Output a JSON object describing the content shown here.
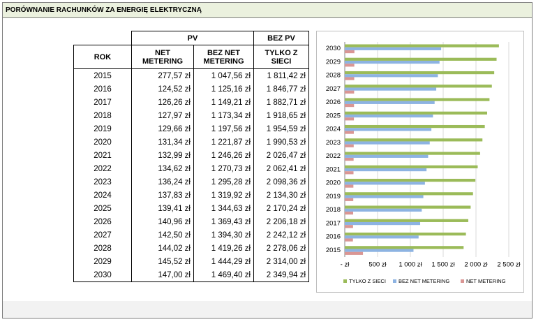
{
  "header": {
    "title": "PORÓWNANIE RACHUNKÓW ZA ENERGIĘ ELEKTRYCZNĄ"
  },
  "table": {
    "group_headers": [
      "PV",
      "BEZ PV"
    ],
    "columns": [
      "ROK",
      "NET METERING",
      "BEZ NET METERING",
      "TYLKO Z SIECI"
    ],
    "rows": [
      [
        "2015",
        "277,57 zł",
        "1 047,56 zł",
        "1 811,42 zł"
      ],
      [
        "2016",
        "124,52 zł",
        "1 125,16 zł",
        "1 846,77 zł"
      ],
      [
        "2017",
        "126,26 zł",
        "1 149,21 zł",
        "1 882,71 zł"
      ],
      [
        "2018",
        "127,97 zł",
        "1 173,34 zł",
        "1 918,65 zł"
      ],
      [
        "2019",
        "129,66 zł",
        "1 197,56 zł",
        "1 954,59 zł"
      ],
      [
        "2020",
        "131,34 zł",
        "1 221,87 zł",
        "1 990,53 zł"
      ],
      [
        "2021",
        "132,99 zł",
        "1 246,26 zł",
        "2 026,47 zł"
      ],
      [
        "2022",
        "134,62 zł",
        "1 270,73 zł",
        "2 062,41 zł"
      ],
      [
        "2023",
        "136,24 zł",
        "1 295,28 zł",
        "2 098,36 zł"
      ],
      [
        "2024",
        "137,83 zł",
        "1 319,92 zł",
        "2 134,30 zł"
      ],
      [
        "2025",
        "139,41 zł",
        "1 344,63 zł",
        "2 170,24 zł"
      ],
      [
        "2026",
        "140,96 zł",
        "1 369,43 zł",
        "2 206,18 zł"
      ],
      [
        "2027",
        "142,50 zł",
        "1 394,30 zł",
        "2 242,12 zł"
      ],
      [
        "2028",
        "144,02 zł",
        "1 419,26 zł",
        "2 278,06 zł"
      ],
      [
        "2029",
        "145,52 zł",
        "1 444,29 zł",
        "2 314,00 zł"
      ],
      [
        "2030",
        "147,00 zł",
        "1 469,40 zł",
        "2 349,94 zł"
      ]
    ]
  },
  "chart_data": {
    "type": "bar",
    "orientation": "horizontal",
    "categories": [
      "2015",
      "2016",
      "2017",
      "2018",
      "2019",
      "2020",
      "2021",
      "2022",
      "2023",
      "2024",
      "2025",
      "2026",
      "2027",
      "2028",
      "2029",
      "2030"
    ],
    "series": [
      {
        "name": "TYLKO Z SIECI",
        "color": "#9bbb59",
        "values": [
          1811.42,
          1846.77,
          1882.71,
          1918.65,
          1954.59,
          1990.53,
          2026.47,
          2062.41,
          2098.36,
          2134.3,
          2170.24,
          2206.18,
          2242.12,
          2278.06,
          2314.0,
          2349.94
        ]
      },
      {
        "name": "BEZ NET METERING",
        "color": "#8db3e2",
        "values": [
          1047.56,
          1125.16,
          1149.21,
          1173.34,
          1197.56,
          1221.87,
          1246.26,
          1270.73,
          1295.28,
          1319.92,
          1344.63,
          1369.43,
          1394.3,
          1419.26,
          1444.29,
          1469.4
        ]
      },
      {
        "name": "NET METERING",
        "color": "#da9694",
        "values": [
          277.57,
          124.52,
          126.26,
          127.97,
          129.66,
          131.34,
          132.99,
          134.62,
          136.24,
          137.83,
          139.41,
          140.96,
          142.5,
          144.02,
          145.52,
          147.0
        ]
      }
    ],
    "xlim": [
      0,
      2500
    ],
    "xticks": [
      {
        "value": 0,
        "label": "- zł"
      },
      {
        "value": 500,
        "label": "500 zł"
      },
      {
        "value": 1000,
        "label": "1 000 zł"
      },
      {
        "value": 1500,
        "label": "1 500 zł"
      },
      {
        "value": 2000,
        "label": "2 000 zł"
      },
      {
        "value": 2500,
        "label": "2 500 zł"
      }
    ],
    "grid": true,
    "legend": "bottom"
  }
}
